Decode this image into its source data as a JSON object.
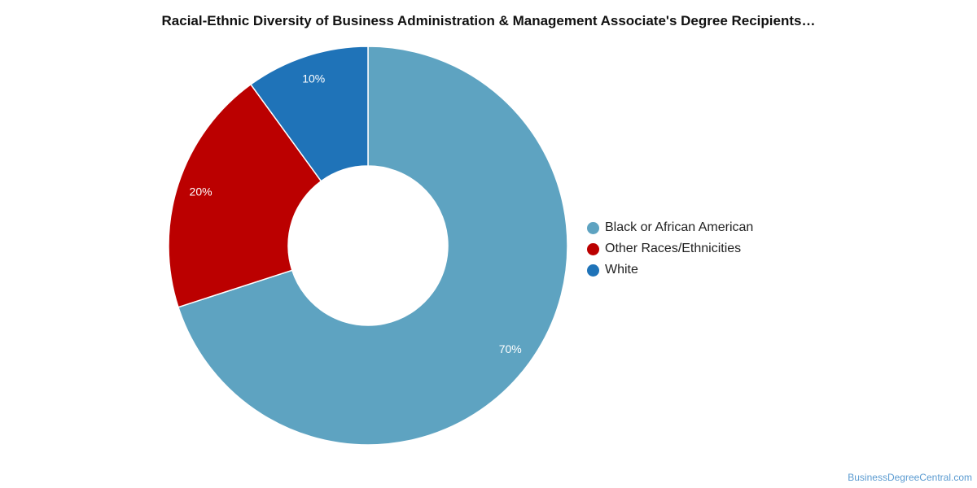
{
  "chart_data": {
    "type": "pie",
    "title": "Racial-Ethnic Diversity of Business Administration & Management Associate's Degree Recipients…",
    "donut": true,
    "legend_position": "right",
    "series": [
      {
        "name": "Black or African American",
        "value": 70,
        "label": "70%",
        "color": "#5ea3c1"
      },
      {
        "name": "Other Races/Ethnicities",
        "value": 20,
        "label": "20%",
        "color": "#bb0000"
      },
      {
        "name": "White",
        "value": 10,
        "label": "10%",
        "color": "#1f73b8"
      }
    ]
  },
  "watermark": "BusinessDegreeCentral.com"
}
